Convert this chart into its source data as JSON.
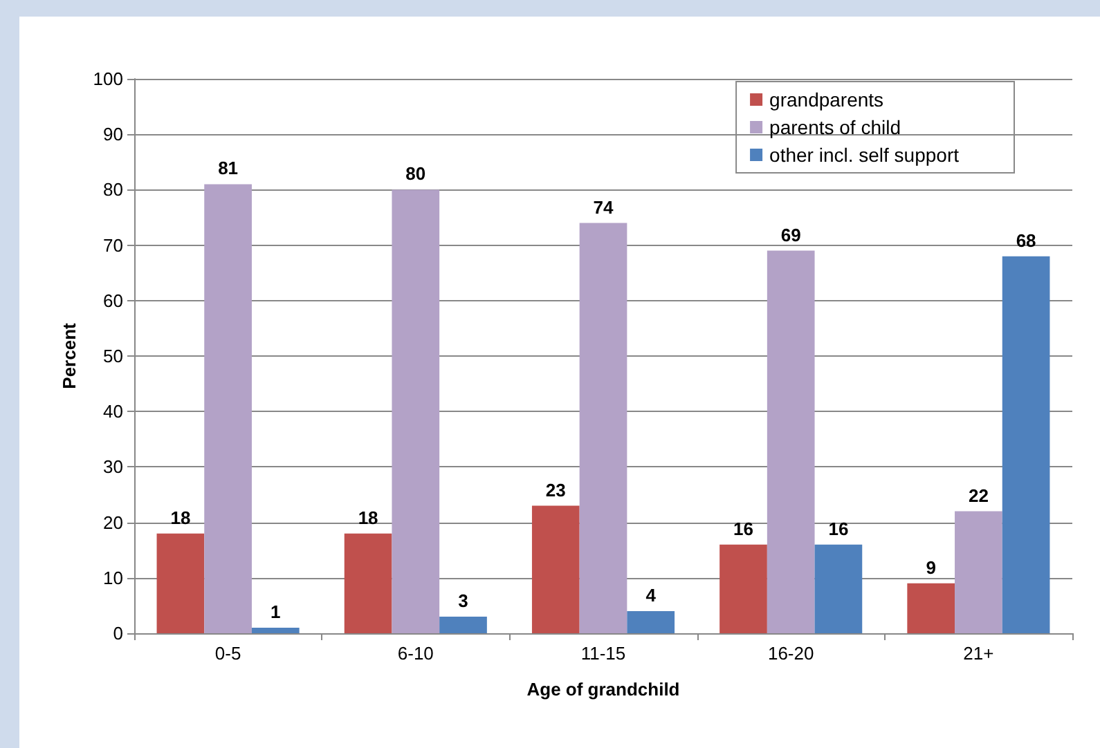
{
  "chart_data": {
    "type": "bar",
    "xlabel": "Age of grandchild",
    "ylabel": "Percent",
    "categories": [
      "0-5",
      "6-10",
      "11-15",
      "16-20",
      "21+"
    ],
    "series": [
      {
        "name": "grandparents",
        "color": "#c0504d",
        "values": [
          18,
          18,
          23,
          16,
          9
        ]
      },
      {
        "name": "parents of child",
        "color": "#b3a2c7",
        "values": [
          81,
          80,
          74,
          69,
          22
        ]
      },
      {
        "name": "other incl. self support",
        "color": "#4f81bd",
        "values": [
          1,
          3,
          4,
          16,
          68
        ]
      }
    ],
    "ylim": [
      0,
      100
    ],
    "yticks": [
      0,
      10,
      20,
      30,
      40,
      50,
      60,
      70,
      80,
      90,
      100
    ],
    "grid": "y",
    "legend": "top right",
    "data_labels": true
  }
}
